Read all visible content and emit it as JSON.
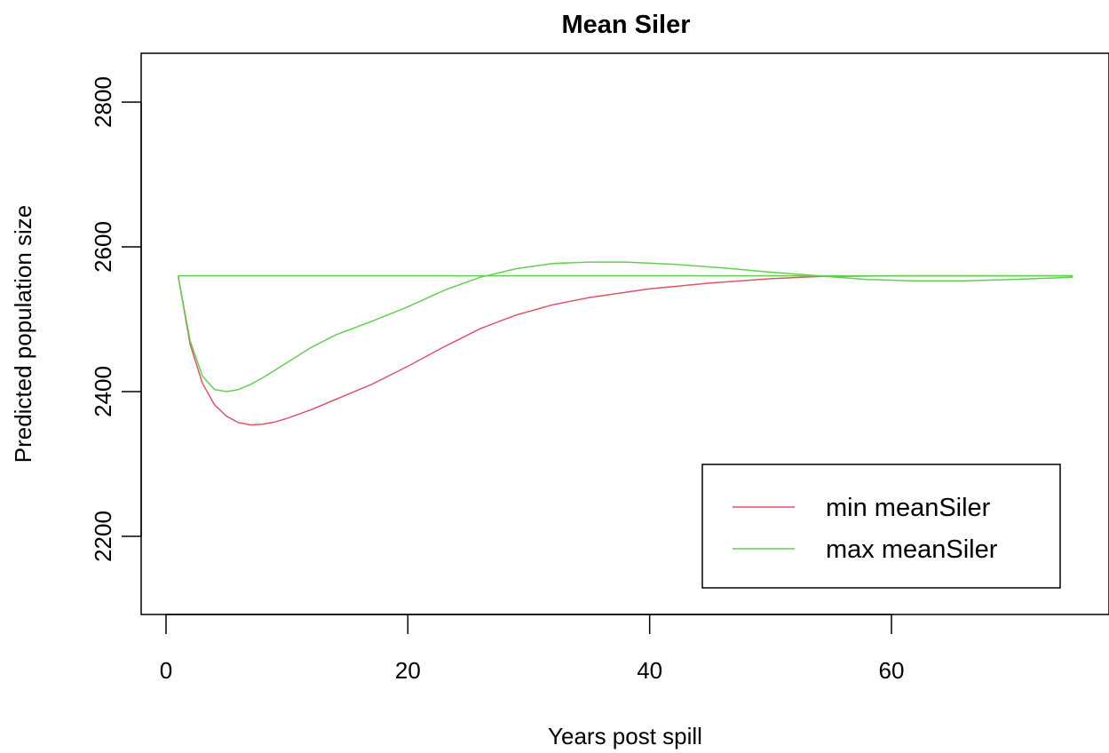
{
  "chart_data": {
    "type": "line",
    "title": "Mean Siler",
    "xlabel": "Years post spill",
    "ylabel": "Predicted population size",
    "xlim": [
      0,
      75
    ],
    "ylim": [
      2100,
      2870
    ],
    "x_ticks": [
      0,
      20,
      40,
      60
    ],
    "x_tick_labels": [
      "0",
      "20",
      "40",
      "60"
    ],
    "y_ticks": [
      2200,
      2400,
      2600,
      2800
    ],
    "y_tick_labels": [
      "2200",
      "2400",
      "2600",
      "2800"
    ],
    "grid": false,
    "legend_position": "bottom-right",
    "series": [
      {
        "name": "min meanSiler",
        "color": "#DF536B",
        "x": [
          1,
          2,
          3,
          4,
          5,
          6,
          7,
          8,
          9,
          10,
          12,
          14,
          17,
          20,
          23,
          26,
          29,
          32,
          35,
          40,
          45,
          50,
          54,
          60,
          65,
          70,
          75
        ],
        "y": [
          2560,
          2465,
          2412,
          2382,
          2366,
          2357,
          2354,
          2355,
          2358,
          2363,
          2375,
          2389,
          2410,
          2435,
          2462,
          2487,
          2506,
          2520,
          2530,
          2542,
          2550,
          2556,
          2559,
          2560,
          2560,
          2560,
          2560
        ]
      },
      {
        "name": "max meanSiler",
        "color": "#61D04F",
        "x": [
          1,
          2,
          3,
          4,
          5,
          6,
          7,
          8,
          10,
          12,
          14,
          17,
          20,
          23,
          26,
          29,
          32,
          35,
          38,
          42,
          46,
          50,
          54,
          58,
          62,
          66,
          70,
          75
        ],
        "y": [
          2560,
          2470,
          2422,
          2403,
          2400,
          2403,
          2410,
          2419,
          2440,
          2461,
          2478,
          2497,
          2517,
          2540,
          2558,
          2570,
          2577,
          2579,
          2579,
          2576,
          2571,
          2565,
          2560,
          2555,
          2553,
          2553,
          2555,
          2558
        ]
      },
      {
        "name": "",
        "color": "#61D04F",
        "x": [
          1,
          75
        ],
        "y": [
          2560,
          2560
        ]
      }
    ]
  }
}
